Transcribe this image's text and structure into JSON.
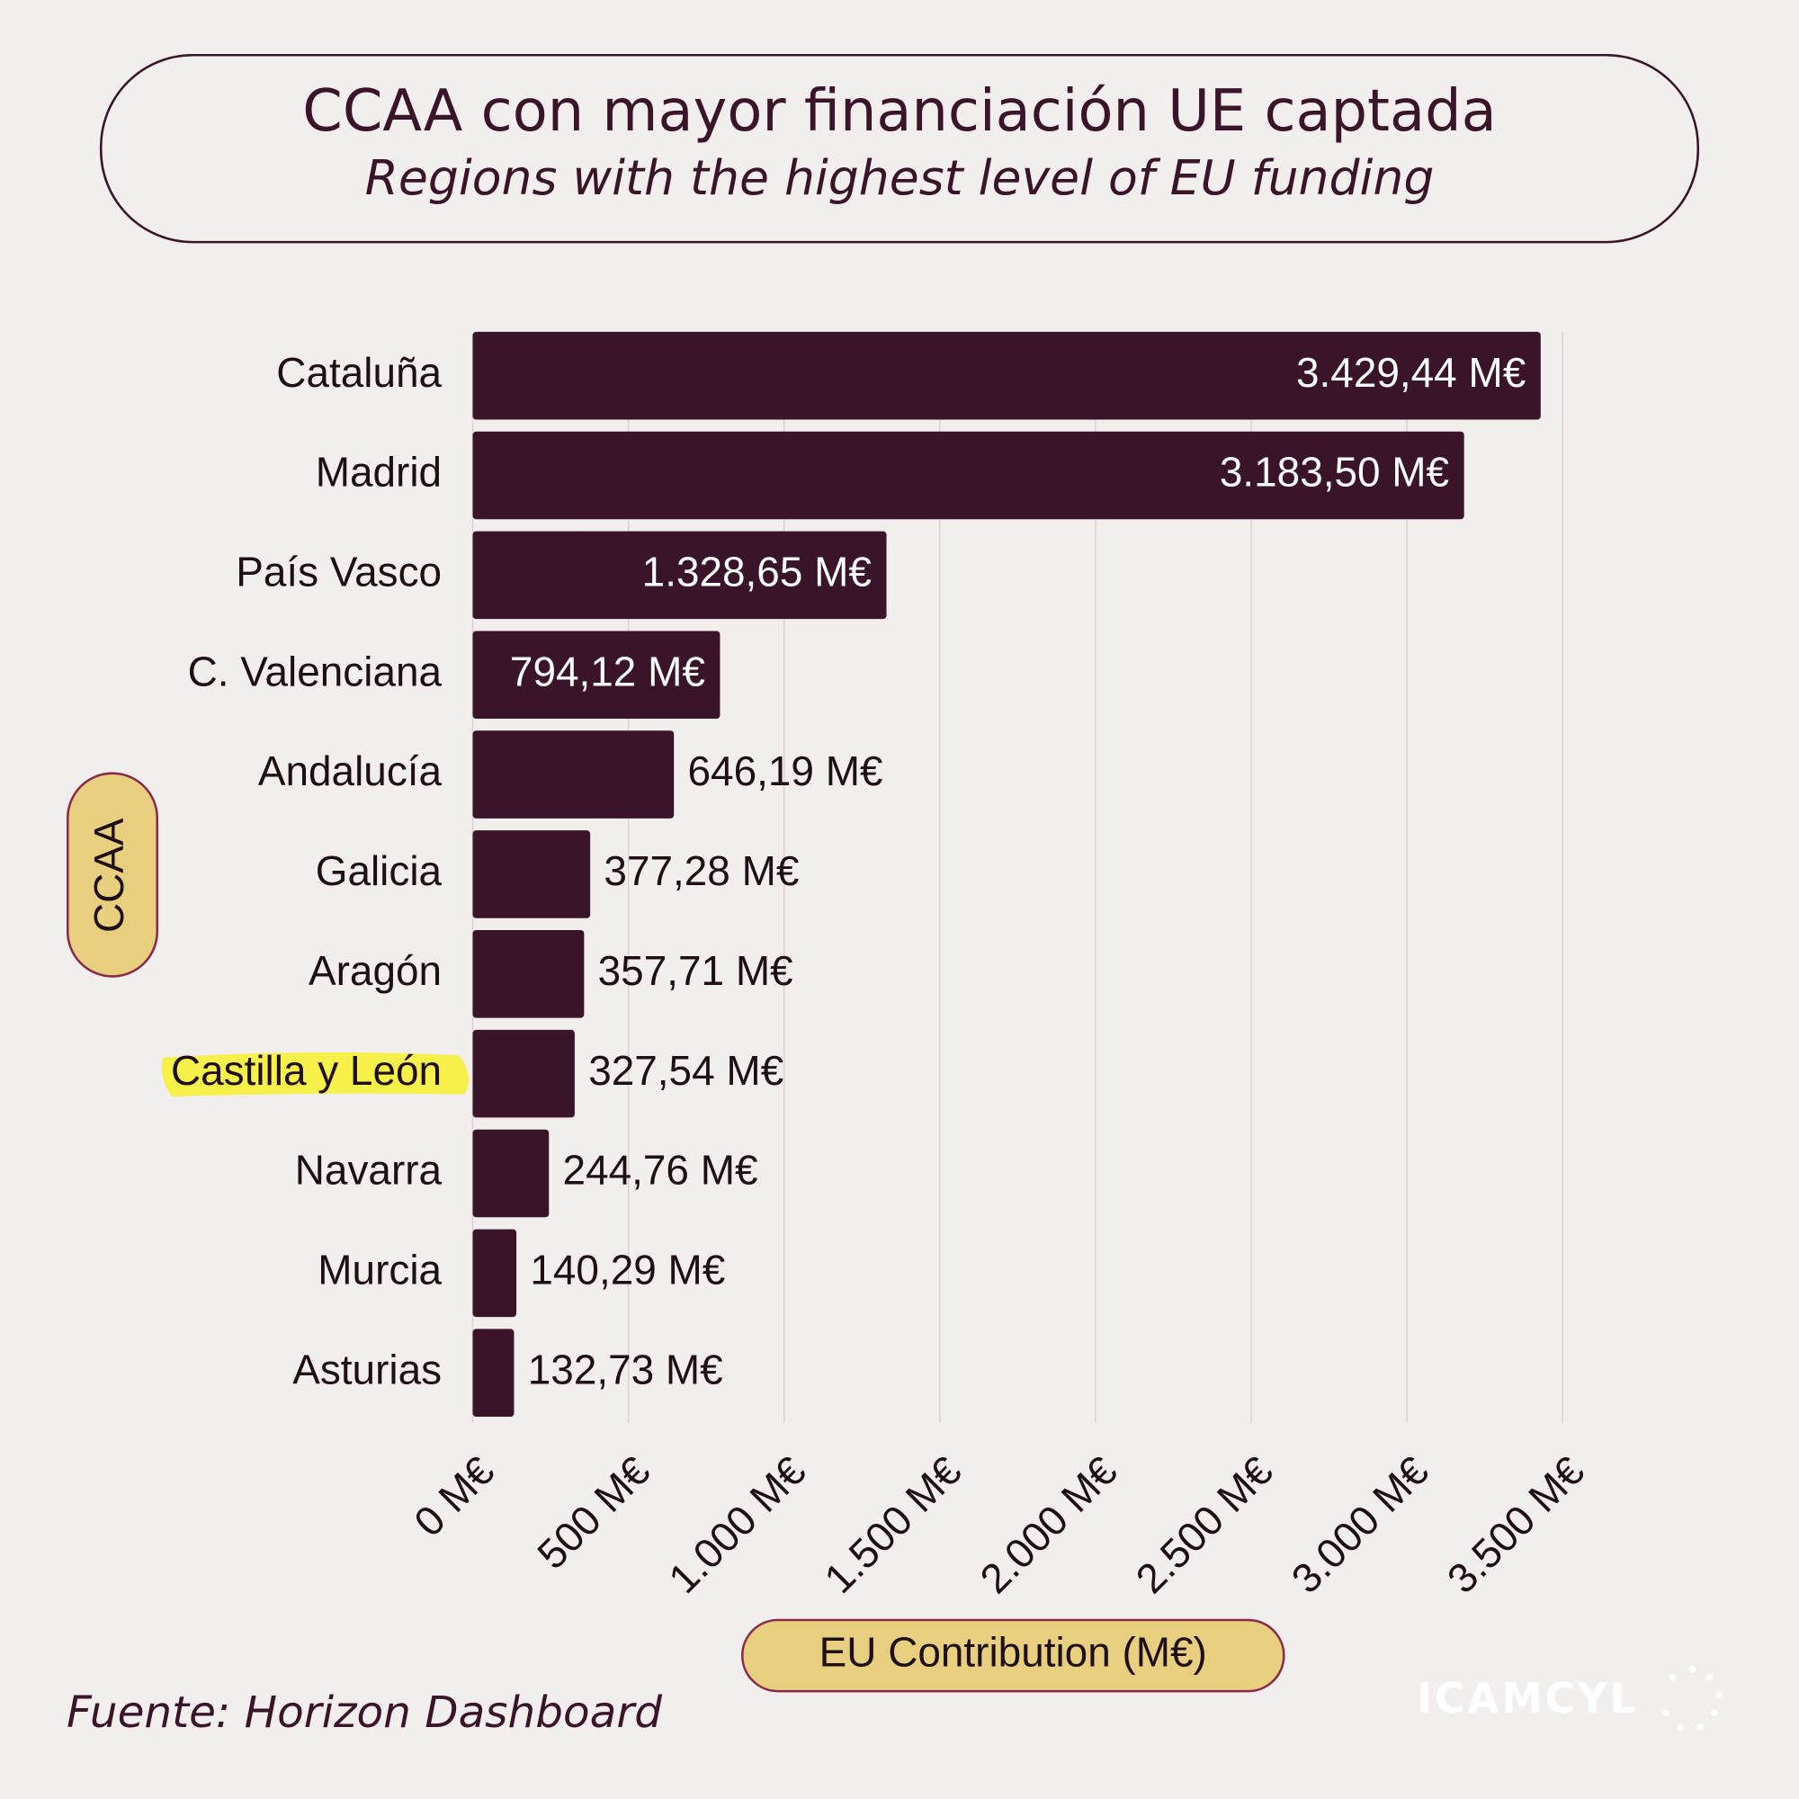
{
  "chart_data": {
    "type": "hbar",
    "title": "CCAA con mayor financiación UE captada",
    "subtitle": "Regions with the highest level of EU funding",
    "categories": [
      "Cataluña",
      "Madrid",
      "País Vasco",
      "C. Valenciana",
      "Andalucía",
      "Galicia",
      "Aragón",
      "Castilla y León",
      "Navarra",
      "Murcia",
      "Asturias"
    ],
    "values": [
      3429.44,
      3183.5,
      1328.65,
      794.12,
      646.19,
      377.28,
      357.71,
      327.54,
      244.76,
      140.29,
      132.73
    ],
    "value_labels": [
      "3.429,44 M€",
      "3.183,50 M€",
      "1.328,65 M€",
      "794,12 M€",
      "646,19 M€",
      "377,28 M€",
      "357,71 M€",
      "327,54 M€",
      "244,76 M€",
      "140,29 M€",
      "132,73 M€"
    ],
    "color": "#3a1429",
    "xlim": [
      0,
      3500
    ],
    "xticks": [
      {
        "value": 0,
        "label": "0 M€"
      },
      {
        "value": 500,
        "label": "500 M€"
      },
      {
        "value": 1000,
        "label": "1.000 M€"
      },
      {
        "value": 1500,
        "label": "1.500 M€"
      },
      {
        "value": 2000,
        "label": "2.000 M€"
      },
      {
        "value": 2500,
        "label": "2.500 M€"
      },
      {
        "value": 3000,
        "label": "3.000 M€"
      },
      {
        "value": 3500,
        "label": "3.500 M€"
      }
    ],
    "grid": true,
    "xlabel": "EU Contribution (M€)",
    "ylabel": "CCAA",
    "highlight_category": 7,
    "highlight_color": "#f5f04a",
    "source": "Fuente: Horizon Dashboard",
    "logo": "ICAMCYL"
  }
}
